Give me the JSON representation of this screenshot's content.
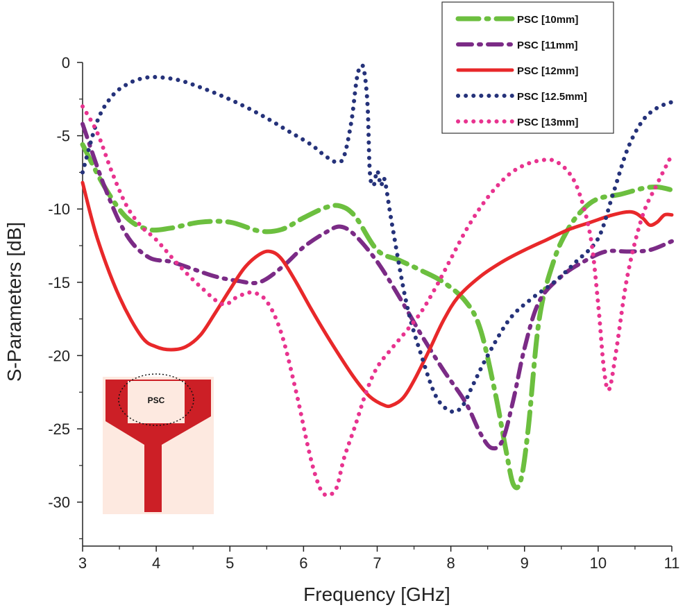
{
  "chart_data": {
    "type": "line",
    "title": "",
    "xlabel": "Frequency [GHz]",
    "ylabel": "S-Parameters [dB]",
    "xlim": [
      3,
      11
    ],
    "ylim": [
      -33,
      0
    ],
    "xticks": [
      3,
      4,
      5,
      6,
      7,
      8,
      9,
      10,
      11
    ],
    "yticks": [
      0,
      -5,
      -10,
      -15,
      -20,
      -25,
      -30
    ],
    "series": [
      {
        "name": "PSC  [10mm]",
        "color": "#6cbf3f",
        "dash": "long-dash-dot",
        "x": [
          3.0,
          3.3,
          3.6,
          3.9,
          4.2,
          4.6,
          5.0,
          5.4,
          5.7,
          6.0,
          6.3,
          6.5,
          6.7,
          7.0,
          7.3,
          7.6,
          7.9,
          8.2,
          8.4,
          8.6,
          8.75,
          8.85,
          8.95,
          9.05,
          9.2,
          9.4,
          9.6,
          9.8,
          10.0,
          10.3,
          10.6,
          10.8,
          11.0
        ],
        "y": [
          -5.6,
          -8.5,
          -10.6,
          -11.4,
          -11.3,
          -10.9,
          -10.9,
          -11.5,
          -11.4,
          -10.6,
          -9.9,
          -9.8,
          -10.5,
          -12.8,
          -13.5,
          -14.2,
          -15.0,
          -16.3,
          -18.2,
          -22.5,
          -26.5,
          -28.8,
          -28.5,
          -25.0,
          -17.5,
          -13.5,
          -11.3,
          -10.0,
          -9.3,
          -9.0,
          -8.6,
          -8.5,
          -8.7
        ]
      },
      {
        "name": "PSC [11mm]",
        "color": "#7b2b86",
        "dash": "dash-dot",
        "x": [
          3.0,
          3.3,
          3.6,
          3.9,
          4.2,
          4.5,
          4.8,
          5.1,
          5.4,
          5.7,
          6.0,
          6.3,
          6.5,
          6.7,
          7.0,
          7.3,
          7.6,
          7.9,
          8.2,
          8.4,
          8.55,
          8.7,
          8.85,
          9.0,
          9.2,
          9.5,
          9.8,
          10.1,
          10.4,
          10.7,
          11.0
        ],
        "y": [
          -4.2,
          -8.5,
          -11.8,
          -13.3,
          -13.6,
          -14.1,
          -14.6,
          -14.9,
          -15.0,
          -14.0,
          -12.6,
          -11.6,
          -11.2,
          -11.8,
          -13.6,
          -16.0,
          -18.6,
          -21.0,
          -23.2,
          -25.3,
          -26.3,
          -25.8,
          -23.0,
          -19.5,
          -16.3,
          -14.6,
          -13.6,
          -12.9,
          -12.9,
          -12.8,
          -12.2
        ]
      },
      {
        "name": "PSC  [12mm]",
        "color": "#e8282a",
        "dash": "solid",
        "x": [
          3.0,
          3.2,
          3.5,
          3.8,
          4.0,
          4.2,
          4.4,
          4.6,
          4.8,
          5.0,
          5.2,
          5.4,
          5.55,
          5.7,
          5.9,
          6.1,
          6.3,
          6.5,
          6.7,
          6.9,
          7.1,
          7.2,
          7.35,
          7.5,
          7.7,
          7.9,
          8.1,
          8.4,
          8.7,
          9.0,
          9.3,
          9.6,
          9.9,
          10.2,
          10.45,
          10.6,
          10.7,
          10.8,
          10.9,
          11.0
        ],
        "y": [
          -8.2,
          -12.0,
          -16.0,
          -18.7,
          -19.4,
          -19.6,
          -19.4,
          -18.6,
          -17.1,
          -15.5,
          -14.0,
          -13.1,
          -12.9,
          -13.4,
          -15.0,
          -16.8,
          -18.5,
          -20.1,
          -21.6,
          -22.8,
          -23.4,
          -23.4,
          -22.9,
          -21.7,
          -19.7,
          -17.6,
          -16.0,
          -14.6,
          -13.6,
          -12.8,
          -12.1,
          -11.4,
          -10.9,
          -10.4,
          -10.2,
          -10.6,
          -11.1,
          -10.9,
          -10.4,
          -10.4
        ]
      },
      {
        "name": "PSC  [12.5mm]",
        "color": "#25327a",
        "dash": "dotted",
        "x": [
          3.0,
          3.2,
          3.4,
          3.6,
          3.8,
          4.0,
          4.3,
          4.6,
          4.9,
          5.2,
          5.5,
          5.8,
          6.1,
          6.3,
          6.45,
          6.55,
          6.65,
          6.72,
          6.77,
          6.82,
          6.87,
          6.9,
          6.95,
          7.0,
          7.05,
          7.1,
          7.2,
          7.4,
          7.6,
          7.8,
          8.0,
          8.15,
          8.3,
          8.5,
          8.8,
          9.1,
          9.4,
          9.7,
          10.0,
          10.2,
          10.4,
          10.6,
          10.8,
          11.0
        ],
        "y": [
          -7.5,
          -4.0,
          -2.3,
          -1.5,
          -1.1,
          -1.0,
          -1.2,
          -1.7,
          -2.3,
          -3.0,
          -3.8,
          -4.7,
          -5.6,
          -6.4,
          -6.8,
          -6.4,
          -4.0,
          -1.2,
          -0.3,
          -0.5,
          -3.0,
          -7.5,
          -8.4,
          -7.4,
          -8.4,
          -8.0,
          -11.0,
          -16.5,
          -20.0,
          -22.8,
          -23.8,
          -23.5,
          -22.0,
          -20.0,
          -17.5,
          -16.1,
          -15.0,
          -13.6,
          -12.0,
          -9.0,
          -5.9,
          -4.0,
          -3.1,
          -2.7
        ]
      },
      {
        "name": "PSC  [13mm]",
        "color": "#e8338f",
        "dash": "dotted",
        "x": [
          3.0,
          3.2,
          3.4,
          3.6,
          3.8,
          4.0,
          4.3,
          4.6,
          4.9,
          5.1,
          5.3,
          5.5,
          5.7,
          5.9,
          6.05,
          6.15,
          6.25,
          6.35,
          6.45,
          6.55,
          6.7,
          6.85,
          7.0,
          7.2,
          7.4,
          7.6,
          7.8,
          8.0,
          8.2,
          8.4,
          8.6,
          8.8,
          9.0,
          9.2,
          9.4,
          9.6,
          9.75,
          9.9,
          10.0,
          10.08,
          10.15,
          10.25,
          10.4,
          10.6,
          10.8,
          11.0
        ],
        "y": [
          -3.0,
          -4.8,
          -7.5,
          -9.8,
          -11.2,
          -12.1,
          -13.8,
          -15.3,
          -16.5,
          -16.0,
          -15.7,
          -16.3,
          -18.5,
          -22.5,
          -26.0,
          -28.0,
          -29.3,
          -29.5,
          -29.0,
          -27.0,
          -24.8,
          -22.5,
          -20.8,
          -19.5,
          -18.3,
          -17.0,
          -15.3,
          -13.4,
          -11.5,
          -9.9,
          -8.6,
          -7.6,
          -7.0,
          -6.7,
          -6.7,
          -7.5,
          -9.0,
          -12.0,
          -16.5,
          -21.0,
          -22.3,
          -19.5,
          -14.5,
          -10.5,
          -8.3,
          -6.3
        ]
      }
    ],
    "inset": {
      "label": "PSC",
      "colors": {
        "background": "#fde9e0",
        "metal": "#cc1f26"
      }
    }
  }
}
